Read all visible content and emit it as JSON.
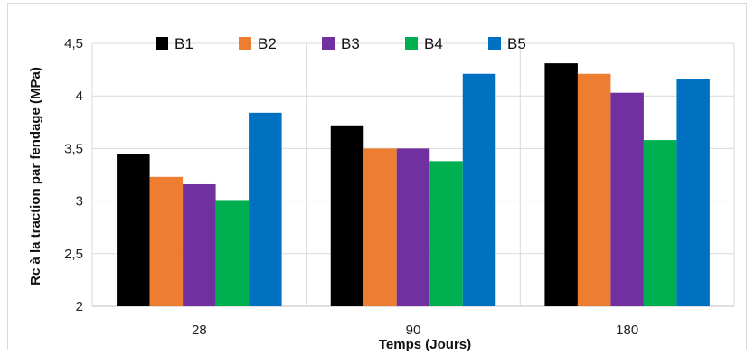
{
  "chart_data": {
    "type": "bar",
    "categories": [
      "28",
      "90",
      "180"
    ],
    "series": [
      {
        "name": "B1",
        "color": "#000000",
        "values": [
          3.45,
          3.72,
          4.31
        ]
      },
      {
        "name": "B2",
        "color": "#ED7D31",
        "values": [
          3.23,
          3.5,
          4.21
        ]
      },
      {
        "name": "B3",
        "color": "#7030A0",
        "values": [
          3.16,
          3.5,
          4.03
        ]
      },
      {
        "name": "B4",
        "color": "#00B050",
        "values": [
          3.01,
          3.38,
          3.58
        ]
      },
      {
        "name": "B5",
        "color": "#0070C0",
        "values": [
          3.84,
          4.21,
          4.16
        ]
      }
    ],
    "title": "",
    "xlabel": "Temps (Jours)",
    "ylabel": "Rc à la traction par fendage (MPa)",
    "ylim": [
      2,
      4.5
    ],
    "yticks": [
      "2",
      "2,5",
      "3",
      "3,5",
      "4",
      "4,5"
    ],
    "grid": true,
    "legend": "top"
  }
}
